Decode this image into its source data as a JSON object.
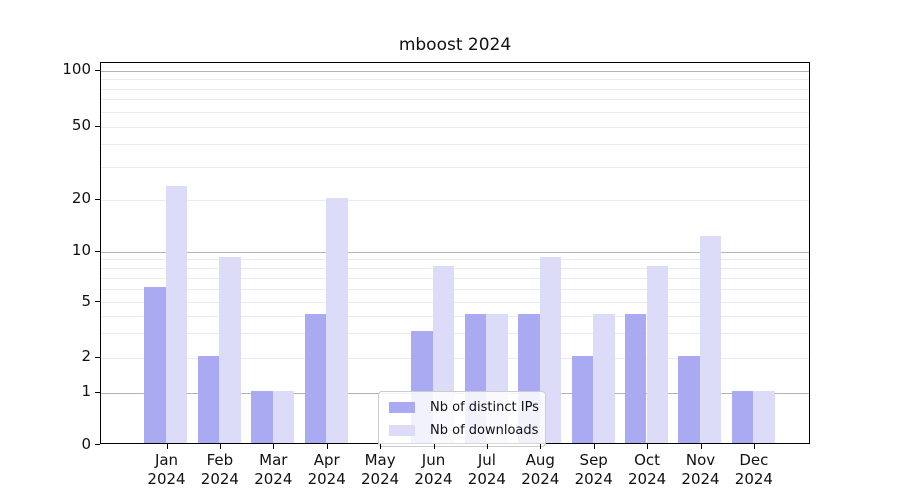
{
  "chart_data": {
    "type": "bar",
    "title": "mboost 2024",
    "categories": [
      "Jan",
      "Feb",
      "Mar",
      "Apr",
      "May",
      "Jun",
      "Jul",
      "Aug",
      "Sep",
      "Oct",
      "Nov",
      "Dec"
    ],
    "year": "2024",
    "series": [
      {
        "name": "Nb of distinct IPs",
        "color": "#aaaaf2",
        "values": [
          6,
          2,
          1,
          4,
          0,
          3,
          4,
          4,
          2,
          4,
          2,
          1
        ]
      },
      {
        "name": "Nb of downloads",
        "color": "#dcdcf8",
        "values": [
          23,
          9,
          1,
          20,
          0,
          8,
          4,
          9,
          4,
          8,
          12,
          1
        ]
      }
    ],
    "xlabel": "",
    "ylabel": "",
    "y_axis": {
      "scale": "log-like (0,1,2,5,10,20,50,100)",
      "ylim": [
        0,
        110
      ],
      "ticks": [
        {
          "label": "100",
          "value": 100
        },
        {
          "label": "50",
          "value": 50
        },
        {
          "label": "20",
          "value": 20
        },
        {
          "label": "10",
          "value": 10
        },
        {
          "label": "5",
          "value": 5
        },
        {
          "label": "2",
          "value": 2
        },
        {
          "label": "1",
          "value": 1
        },
        {
          "label": "0",
          "value": 0
        }
      ],
      "major_gridlines": [
        1,
        10,
        100
      ],
      "minor_gridlines": [
        2,
        3,
        4,
        5,
        6,
        7,
        8,
        9,
        20,
        30,
        40,
        50,
        60,
        70,
        80,
        90
      ]
    },
    "legend": {
      "position": "bottom-center-inside",
      "entries": [
        "Nb of distinct IPs",
        "Nb of downloads"
      ]
    },
    "grid": true
  }
}
